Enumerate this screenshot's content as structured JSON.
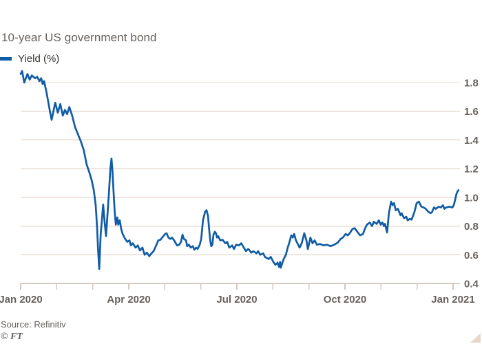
{
  "title": "10-year US government bond",
  "legend": {
    "label": "Yield (%)"
  },
  "source": "Source: Refinitiv",
  "credit": "© FT",
  "colors": {
    "line": "#115ca6",
    "grid": "#e9dbd0",
    "axis": "#d5c8bd",
    "text_muted": "#66605b",
    "text_dark": "#33302e",
    "background": "#ffffff",
    "corner_mark": "#e7d8ca"
  },
  "chart_data": {
    "type": "line",
    "title": "10-year US government bond",
    "series_name": "Yield (%)",
    "xlabel": "",
    "ylabel": "Yield (%)",
    "x_unit": "months since Jan 2020",
    "xlim_months": [
      0,
      12.15
    ],
    "ylim": [
      0.4,
      1.9
    ],
    "grid": true,
    "legend_position": "top-left",
    "y_axis_side": "right",
    "y_ticks": [
      0.4,
      0.6,
      0.8,
      1.0,
      1.2,
      1.4,
      1.6,
      1.8
    ],
    "x_major_tick_months": [
      0,
      3,
      6,
      9,
      12
    ],
    "x_tick_labels": [
      "Jan 2020",
      "Apr 2020",
      "Jul 2020",
      "Oct 2020",
      "Jan 2021"
    ],
    "x_minor_tick_every_month": true,
    "points": [
      [
        0,
        1.86
      ],
      [
        0.04,
        1.88
      ],
      [
        0.1,
        1.8
      ],
      [
        0.19,
        1.86
      ],
      [
        0.25,
        1.82
      ],
      [
        0.31,
        1.85
      ],
      [
        0.4,
        1.83
      ],
      [
        0.46,
        1.84
      ],
      [
        0.52,
        1.81
      ],
      [
        0.57,
        1.83
      ],
      [
        0.61,
        1.79
      ],
      [
        0.65,
        1.81
      ],
      [
        0.71,
        1.74
      ],
      [
        0.77,
        1.66
      ],
      [
        0.82,
        1.59
      ],
      [
        0.86,
        1.54
      ],
      [
        0.91,
        1.6
      ],
      [
        0.96,
        1.66
      ],
      [
        1.03,
        1.59
      ],
      [
        1.1,
        1.65
      ],
      [
        1.17,
        1.57
      ],
      [
        1.23,
        1.61
      ],
      [
        1.29,
        1.58
      ],
      [
        1.35,
        1.63
      ],
      [
        1.43,
        1.57
      ],
      [
        1.51,
        1.49
      ],
      [
        1.59,
        1.44
      ],
      [
        1.67,
        1.39
      ],
      [
        1.75,
        1.33
      ],
      [
        1.83,
        1.23
      ],
      [
        1.91,
        1.17
      ],
      [
        1.97,
        1.12
      ],
      [
        2.03,
        1.05
      ],
      [
        2.08,
        0.95
      ],
      [
        2.12,
        0.8
      ],
      [
        2.15,
        0.63
      ],
      [
        2.18,
        0.5
      ],
      [
        2.22,
        0.74
      ],
      [
        2.26,
        0.86
      ],
      [
        2.29,
        0.95
      ],
      [
        2.33,
        0.83
      ],
      [
        2.37,
        0.73
      ],
      [
        2.41,
        0.88
      ],
      [
        2.45,
        1.03
      ],
      [
        2.49,
        1.2
      ],
      [
        2.52,
        1.27
      ],
      [
        2.55,
        1.18
      ],
      [
        2.58,
        1.03
      ],
      [
        2.61,
        0.9
      ],
      [
        2.64,
        0.81
      ],
      [
        2.68,
        0.86
      ],
      [
        2.71,
        0.81
      ],
      [
        2.75,
        0.84
      ],
      [
        2.79,
        0.78
      ],
      [
        2.83,
        0.745
      ],
      [
        2.9,
        0.71
      ],
      [
        2.96,
        0.69
      ],
      [
        3.02,
        0.7
      ],
      [
        3.06,
        0.665
      ],
      [
        3.11,
        0.68
      ],
      [
        3.19,
        0.65
      ],
      [
        3.25,
        0.665
      ],
      [
        3.31,
        0.63
      ],
      [
        3.38,
        0.65
      ],
      [
        3.44,
        0.6
      ],
      [
        3.5,
        0.615
      ],
      [
        3.57,
        0.59
      ],
      [
        3.63,
        0.61
      ],
      [
        3.69,
        0.625
      ],
      [
        3.76,
        0.665
      ],
      [
        3.82,
        0.7
      ],
      [
        3.88,
        0.705
      ],
      [
        3.96,
        0.73
      ],
      [
        4.01,
        0.745
      ],
      [
        4.05,
        0.75
      ],
      [
        4.1,
        0.72
      ],
      [
        4.15,
        0.71
      ],
      [
        4.2,
        0.72
      ],
      [
        4.26,
        0.7
      ],
      [
        4.34,
        0.665
      ],
      [
        4.4,
        0.67
      ],
      [
        4.45,
        0.69
      ],
      [
        4.49,
        0.74
      ],
      [
        4.53,
        0.71
      ],
      [
        4.59,
        0.7
      ],
      [
        4.62,
        0.66
      ],
      [
        4.67,
        0.67
      ],
      [
        4.72,
        0.65
      ],
      [
        4.78,
        0.66
      ],
      [
        4.82,
        0.635
      ],
      [
        4.87,
        0.65
      ],
      [
        4.91,
        0.64
      ],
      [
        4.97,
        0.67
      ],
      [
        5.01,
        0.71
      ],
      [
        5.06,
        0.84
      ],
      [
        5.12,
        0.9
      ],
      [
        5.16,
        0.91
      ],
      [
        5.2,
        0.87
      ],
      [
        5.23,
        0.78
      ],
      [
        5.26,
        0.7
      ],
      [
        5.29,
        0.66
      ],
      [
        5.32,
        0.67
      ],
      [
        5.35,
        0.74
      ],
      [
        5.39,
        0.76
      ],
      [
        5.42,
        0.75
      ],
      [
        5.45,
        0.72
      ],
      [
        5.48,
        0.73
      ],
      [
        5.54,
        0.7
      ],
      [
        5.6,
        0.705
      ],
      [
        5.68,
        0.68
      ],
      [
        5.73,
        0.69
      ],
      [
        5.79,
        0.65
      ],
      [
        5.87,
        0.665
      ],
      [
        5.92,
        0.64
      ],
      [
        5.98,
        0.67
      ],
      [
        6.06,
        0.665
      ],
      [
        6.12,
        0.68
      ],
      [
        6.17,
        0.66
      ],
      [
        6.25,
        0.625
      ],
      [
        6.31,
        0.64
      ],
      [
        6.34,
        0.635
      ],
      [
        6.4,
        0.615
      ],
      [
        6.46,
        0.625
      ],
      [
        6.54,
        0.61
      ],
      [
        6.59,
        0.625
      ],
      [
        6.65,
        0.6
      ],
      [
        6.73,
        0.61
      ],
      [
        6.78,
        0.585
      ],
      [
        6.88,
        0.57
      ],
      [
        6.94,
        0.585
      ],
      [
        7.01,
        0.55
      ],
      [
        7.07,
        0.53
      ],
      [
        7.13,
        0.545
      ],
      [
        7.17,
        0.515
      ],
      [
        7.2,
        0.55
      ],
      [
        7.22,
        0.51
      ],
      [
        7.3,
        0.57
      ],
      [
        7.36,
        0.6
      ],
      [
        7.41,
        0.65
      ],
      [
        7.45,
        0.68
      ],
      [
        7.51,
        0.735
      ],
      [
        7.55,
        0.72
      ],
      [
        7.59,
        0.745
      ],
      [
        7.64,
        0.7
      ],
      [
        7.7,
        0.67
      ],
      [
        7.74,
        0.65
      ],
      [
        7.8,
        0.68
      ],
      [
        7.87,
        0.75
      ],
      [
        7.93,
        0.7
      ],
      [
        7.97,
        0.64
      ],
      [
        8.04,
        0.72
      ],
      [
        8.1,
        0.68
      ],
      [
        8.16,
        0.7
      ],
      [
        8.22,
        0.67
      ],
      [
        8.31,
        0.675
      ],
      [
        8.4,
        0.665
      ],
      [
        8.5,
        0.67
      ],
      [
        8.6,
        0.66
      ],
      [
        8.7,
        0.67
      ],
      [
        8.8,
        0.685
      ],
      [
        8.88,
        0.71
      ],
      [
        8.94,
        0.72
      ],
      [
        9.02,
        0.745
      ],
      [
        9.08,
        0.735
      ],
      [
        9.13,
        0.75
      ],
      [
        9.21,
        0.78
      ],
      [
        9.27,
        0.785
      ],
      [
        9.36,
        0.755
      ],
      [
        9.42,
        0.735
      ],
      [
        9.5,
        0.745
      ],
      [
        9.56,
        0.785
      ],
      [
        9.61,
        0.81
      ],
      [
        9.69,
        0.825
      ],
      [
        9.75,
        0.8
      ],
      [
        9.8,
        0.83
      ],
      [
        9.88,
        0.815
      ],
      [
        9.94,
        0.84
      ],
      [
        9.99,
        0.81
      ],
      [
        10.04,
        0.825
      ],
      [
        10.08,
        0.8
      ],
      [
        10.11,
        0.815
      ],
      [
        10.17,
        0.755
      ],
      [
        10.22,
        0.89
      ],
      [
        10.28,
        0.97
      ],
      [
        10.32,
        0.945
      ],
      [
        10.36,
        0.96
      ],
      [
        10.41,
        0.91
      ],
      [
        10.47,
        0.92
      ],
      [
        10.54,
        0.875
      ],
      [
        10.57,
        0.89
      ],
      [
        10.64,
        0.855
      ],
      [
        10.7,
        0.865
      ],
      [
        10.74,
        0.84
      ],
      [
        10.8,
        0.85
      ],
      [
        10.85,
        0.845
      ],
      [
        10.93,
        0.9
      ],
      [
        10.99,
        0.96
      ],
      [
        11.05,
        0.97
      ],
      [
        11.12,
        0.935
      ],
      [
        11.18,
        0.93
      ],
      [
        11.24,
        0.92
      ],
      [
        11.31,
        0.9
      ],
      [
        11.37,
        0.89
      ],
      [
        11.41,
        0.895
      ],
      [
        11.47,
        0.93
      ],
      [
        11.52,
        0.92
      ],
      [
        11.6,
        0.935
      ],
      [
        11.66,
        0.93
      ],
      [
        11.72,
        0.945
      ],
      [
        11.76,
        0.92
      ],
      [
        11.81,
        0.93
      ],
      [
        11.89,
        0.935
      ],
      [
        11.98,
        0.93
      ],
      [
        12.02,
        0.945
      ],
      [
        12.06,
        0.985
      ],
      [
        12.09,
        1.02
      ],
      [
        12.12,
        1.04
      ],
      [
        12.15,
        1.05
      ]
    ]
  }
}
